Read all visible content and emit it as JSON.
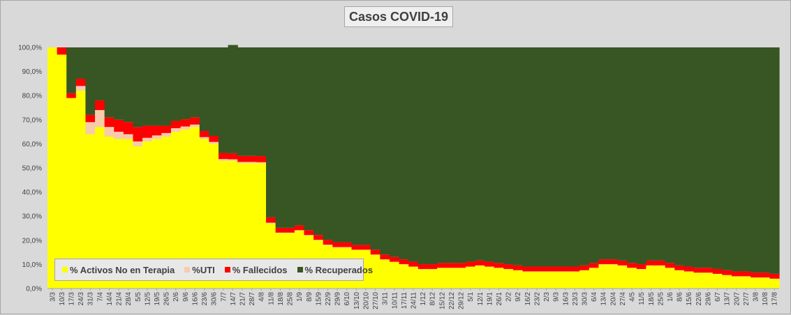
{
  "chart_data": {
    "type": "area",
    "stacked": "percent",
    "title": "Casos  COVID-19",
    "y_tick_labels": [
      "0,0%",
      "10,0%",
      "20,0%",
      "30,0%",
      "40,0%",
      "50,0%",
      "60,0%",
      "70,0%",
      "80,0%",
      "90,0%",
      "100,0%"
    ],
    "ylim": [
      0,
      100
    ],
    "x_tick_labels": [
      "3/3",
      "10/3",
      "17/3",
      "24/3",
      "31/3",
      "7/4",
      "14/4",
      "21/4",
      "28/4",
      "5/5",
      "12/5",
      "19/5",
      "26/5",
      "2/6",
      "9/6",
      "16/6",
      "23/6",
      "30/6",
      "7/7",
      "14/7",
      "21/7",
      "28/7",
      "4/8",
      "11/8",
      "18/8",
      "25/8",
      "1/9",
      "8/9",
      "15/9",
      "22/9",
      "29/9",
      "6/10",
      "13/10",
      "20/10",
      "27/10",
      "3/11",
      "10/11",
      "17/11",
      "24/11",
      "1/12",
      "8/12",
      "15/12",
      "22/12",
      "29/12",
      "5/1",
      "12/1",
      "19/1",
      "26/1",
      "2/2",
      "9/2",
      "16/2",
      "23/2",
      "2/3",
      "9/3",
      "16/3",
      "23/3",
      "30/3",
      "6/4",
      "13/4",
      "20/4",
      "27/4",
      "4/5",
      "11/5",
      "18/5",
      "25/5",
      "1/6",
      "8/6",
      "15/6",
      "22/6",
      "29/6",
      "6/7",
      "13/7",
      "20/7",
      "27/7",
      "3/8",
      "10/8",
      "17/8"
    ],
    "legend_position": "bottom-left",
    "grid": false,
    "series": [
      {
        "name": "% Activos No en Terapia",
        "color": "#ffff00",
        "values": [
          100,
          97,
          79,
          82,
          64,
          67,
          63,
          62,
          62,
          59,
          61,
          62,
          63,
          65,
          66,
          67,
          62,
          60,
          53,
          53,
          52,
          52,
          52,
          27,
          23,
          23,
          24,
          22,
          20,
          18,
          17,
          17,
          16,
          16,
          14,
          12,
          11,
          10,
          9,
          8,
          8,
          8.5,
          8.5,
          8.5,
          9,
          9.5,
          9,
          8.5,
          8,
          7.5,
          7,
          7,
          7,
          7,
          7,
          7,
          7.5,
          8.5,
          10,
          10,
          9.5,
          8.5,
          8,
          9.5,
          9.5,
          8.5,
          7.5,
          7,
          6.5,
          6.5,
          6,
          5.5,
          5,
          5,
          4.5,
          4.5,
          4
        ]
      },
      {
        "name": "%UTI",
        "color": "#f8cbad",
        "values": [
          0,
          0,
          0,
          2,
          5,
          7,
          4,
          3,
          2,
          2,
          1.5,
          1.5,
          1.5,
          1.5,
          1.2,
          1,
          0.8,
          0.8,
          0.7,
          0.6,
          0.5,
          0.5,
          0.4,
          0.3,
          0.2,
          0.2,
          0.2,
          0.2,
          0.2,
          0.2,
          0.2,
          0.2,
          0.1,
          0.1,
          0.1,
          0.1,
          0.1,
          0.1,
          0.1,
          0.1,
          0.1,
          0.1,
          0.1,
          0.1,
          0.1,
          0.1,
          0.1,
          0.1,
          0.1,
          0.1,
          0.1,
          0.1,
          0.1,
          0.1,
          0.1,
          0.1,
          0.1,
          0.1,
          0.1,
          0.1,
          0.1,
          0.1,
          0.1,
          0.1,
          0.1,
          0.1,
          0.1,
          0.1,
          0.1,
          0.1,
          0.1,
          0.1,
          0.1,
          0.1,
          0.1,
          0.1,
          0.1
        ]
      },
      {
        "name": "% Fallecidos",
        "color": "#ff0000",
        "values": [
          0,
          3,
          2,
          3,
          3,
          4,
          4,
          5,
          5,
          6,
          5,
          4,
          3,
          3,
          3,
          3,
          2.5,
          2.5,
          2.5,
          2.5,
          2.5,
          2.5,
          2.5,
          2.2,
          2,
          2,
          2,
          2,
          2,
          2,
          2,
          2,
          2,
          2,
          2,
          2,
          2,
          2,
          2,
          2,
          2,
          2,
          2,
          2,
          2,
          2,
          2,
          2,
          2,
          2,
          2,
          2,
          2,
          2,
          2,
          2,
          2,
          2,
          2,
          2,
          2,
          2,
          2,
          2,
          2,
          2,
          2,
          2,
          2,
          2,
          2,
          2,
          2,
          2,
          2,
          2,
          2
        ]
      },
      {
        "name": "% Recuperados",
        "color": "#375623",
        "values": [
          0,
          0,
          19,
          13,
          28,
          22,
          29,
          30,
          31,
          33,
          32.5,
          32.5,
          32.5,
          30.5,
          29.8,
          29,
          34.7,
          36.7,
          43.8,
          44.9,
          45,
          45,
          45.1,
          70.5,
          74.8,
          74.8,
          73.8,
          75.8,
          77.8,
          79.8,
          80.8,
          80.8,
          81.9,
          81.9,
          83.9,
          85.9,
          86.9,
          87.9,
          88.9,
          89.9,
          89.9,
          89.4,
          89.4,
          89.4,
          88.9,
          88.4,
          88.9,
          89.4,
          89.9,
          90.4,
          90.9,
          90.9,
          90.9,
          90.9,
          90.9,
          90.9,
          90.4,
          89.4,
          87.9,
          87.9,
          88.4,
          89.4,
          89.9,
          88.4,
          88.4,
          89.4,
          90.4,
          90.9,
          91.4,
          91.4,
          91.9,
          92.4,
          92.9,
          92.9,
          93.4,
          93.4,
          93.9
        ]
      }
    ]
  }
}
